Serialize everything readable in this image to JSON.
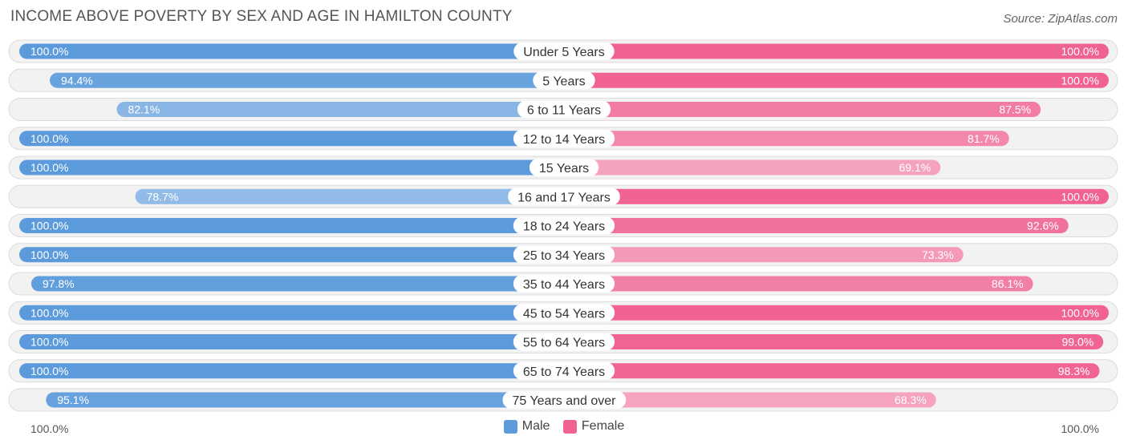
{
  "title": "INCOME ABOVE POVERTY BY SEX AND AGE IN HAMILTON COUNTY",
  "source": "Source: ZipAtlas.com",
  "axis_left_label": "100.0%",
  "axis_right_label": "100.0%",
  "legend": {
    "male_label": "Male",
    "female_label": "Female",
    "male_color": "#5b9bdb",
    "female_color": "#f06292"
  },
  "chart_data": {
    "type": "bar",
    "orientation": "horizontal-diverging",
    "title": "INCOME ABOVE POVERTY BY SEX AND AGE IN HAMILTON COUNTY",
    "xlim": [
      0,
      100
    ],
    "unit": "%",
    "categories": [
      "Under 5 Years",
      "5 Years",
      "6 to 11 Years",
      "12 to 14 Years",
      "15 Years",
      "16 and 17 Years",
      "18 to 24 Years",
      "25 to 34 Years",
      "35 to 44 Years",
      "45 to 54 Years",
      "55 to 64 Years",
      "65 to 74 Years",
      "75 Years and over"
    ],
    "series": [
      {
        "name": "Male",
        "values": [
          100.0,
          94.4,
          82.1,
          100.0,
          100.0,
          78.7,
          100.0,
          100.0,
          97.8,
          100.0,
          100.0,
          100.0,
          95.1
        ],
        "labels": [
          "100.0%",
          "94.4%",
          "82.1%",
          "100.0%",
          "100.0%",
          "78.7%",
          "100.0%",
          "100.0%",
          "97.8%",
          "100.0%",
          "100.0%",
          "100.0%",
          "95.1%"
        ]
      },
      {
        "name": "Female",
        "values": [
          100.0,
          100.0,
          87.5,
          81.7,
          69.1,
          100.0,
          92.6,
          73.3,
          86.1,
          100.0,
          99.0,
          98.3,
          68.3
        ],
        "labels": [
          "100.0%",
          "100.0%",
          "87.5%",
          "81.7%",
          "69.1%",
          "100.0%",
          "92.6%",
          "73.3%",
          "86.1%",
          "100.0%",
          "99.0%",
          "98.3%",
          "68.3%"
        ]
      }
    ]
  }
}
